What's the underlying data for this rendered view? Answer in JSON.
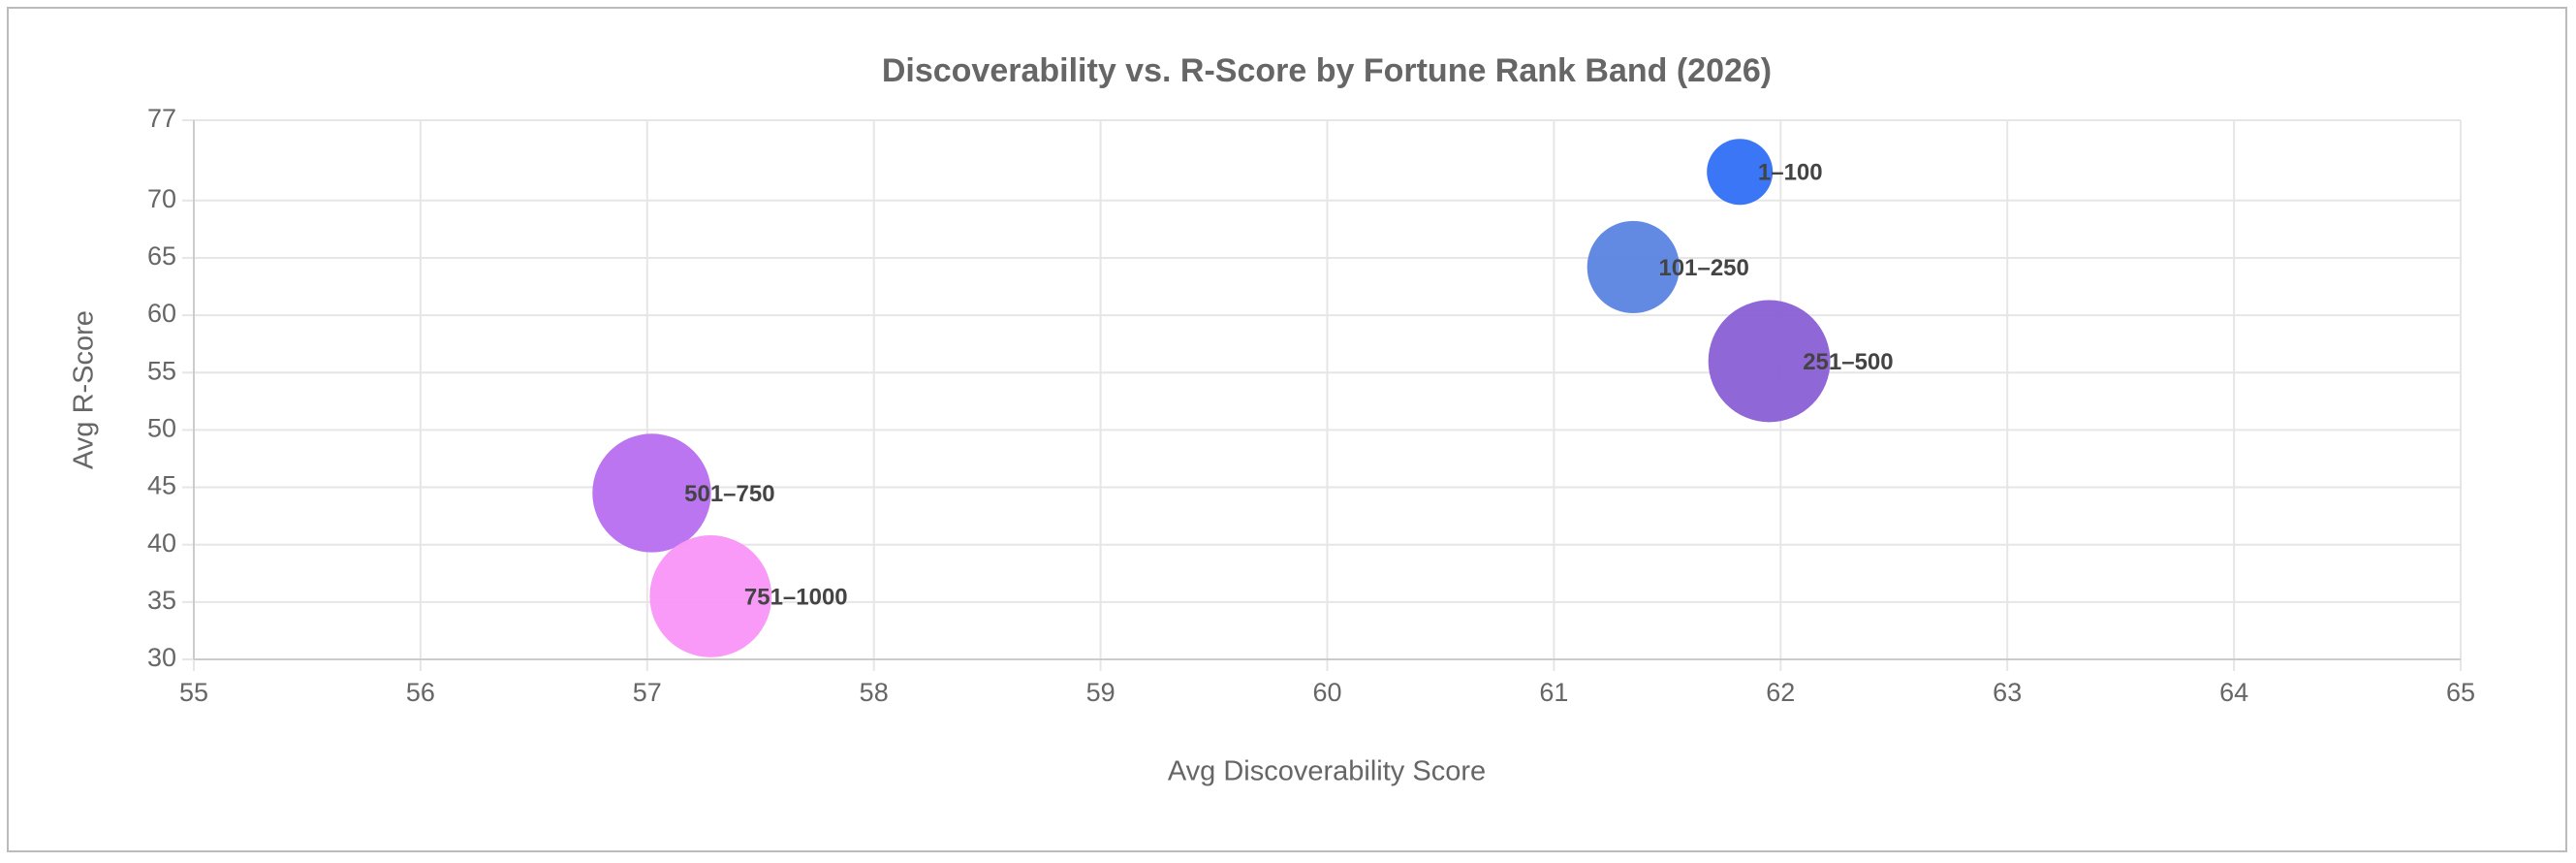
{
  "chart_data": {
    "type": "bubble",
    "title": "Discoverability vs. R-Score by Fortune Rank Band (2026)",
    "x_label": "Avg Discoverability Score",
    "y_label": "Avg R-Score",
    "xlim": [
      55,
      65
    ],
    "xticks": [
      55,
      56,
      57,
      58,
      59,
      60,
      61,
      62,
      63,
      64,
      65
    ],
    "ylim": [
      30,
      77
    ],
    "yticks": [
      30,
      35,
      40,
      45,
      50,
      55,
      60,
      65,
      70,
      77
    ],
    "grid": true,
    "series": [
      {
        "name": "1–100",
        "color": "#2f6ff5",
        "x": [
          61.82
        ],
        "values": [
          72.5
        ],
        "sizes": [
          20
        ]
      },
      {
        "name": "101–250",
        "color": "#5b84e0",
        "x": [
          61.35
        ],
        "values": [
          64.2
        ],
        "sizes": [
          28
        ]
      },
      {
        "name": "251–500",
        "color": "#8a5fd4",
        "x": [
          61.95
        ],
        "values": [
          56
        ],
        "sizes": [
          37
        ]
      },
      {
        "name": "501–750",
        "color": "#b86ef0",
        "x": [
          57.02
        ],
        "values": [
          44.5
        ],
        "sizes": [
          36
        ]
      },
      {
        "name": "751–1000",
        "color": "#f995f8",
        "x": [
          57.28
        ],
        "values": [
          35.5
        ],
        "sizes": [
          37
        ]
      }
    ]
  }
}
